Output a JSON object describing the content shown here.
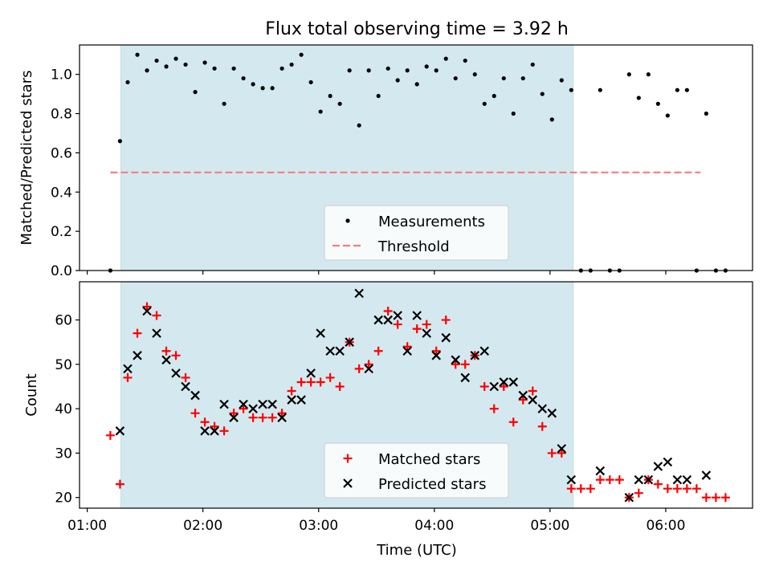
{
  "chart_data": [
    {
      "panel": "top",
      "type": "scatter",
      "title": "Flux total observing time = 3.92 h",
      "xlabel": "",
      "ylabel": "Matched/Predicted stars",
      "x_unit": "minutes after 00:00 UTC",
      "xlim": [
        56,
        405
      ],
      "ylim": [
        0.0,
        1.15
      ],
      "yticks": [
        0.0,
        0.2,
        0.4,
        0.6,
        0.8,
        1.0
      ],
      "ytick_labels": [
        "0.0",
        "0.2",
        "0.4",
        "0.6",
        "0.8",
        "1.0"
      ],
      "xticks": [
        60,
        120,
        180,
        240,
        300,
        360
      ],
      "shaded_span": [
        77.5,
        312
      ],
      "shaded_color": "#d4e9ef",
      "threshold": {
        "value": 0.5,
        "x_range": [
          72,
          378
        ],
        "color": "#f07f7f"
      },
      "series": [
        {
          "name": "Measurements",
          "color": "#000000",
          "points": [
            [
              72,
              0.0
            ],
            [
              77,
              0.66
            ],
            [
              81,
              0.96
            ],
            [
              86,
              1.1
            ],
            [
              91,
              1.02
            ],
            [
              96,
              1.07
            ],
            [
              101,
              1.04
            ],
            [
              106,
              1.08
            ],
            [
              111,
              1.05
            ],
            [
              116,
              0.91
            ],
            [
              121,
              1.06
            ],
            [
              126,
              1.03
            ],
            [
              131,
              0.85
            ],
            [
              136,
              1.03
            ],
            [
              141,
              0.98
            ],
            [
              146,
              0.95
            ],
            [
              151,
              0.93
            ],
            [
              156,
              0.93
            ],
            [
              161,
              1.03
            ],
            [
              166,
              1.05
            ],
            [
              171,
              1.1
            ],
            [
              176,
              0.96
            ],
            [
              181,
              0.81
            ],
            [
              186,
              0.89
            ],
            [
              191,
              0.85
            ],
            [
              196,
              1.02
            ],
            [
              201,
              0.74
            ],
            [
              206,
              1.02
            ],
            [
              211,
              0.89
            ],
            [
              216,
              1.03
            ],
            [
              221,
              0.97
            ],
            [
              226,
              1.02
            ],
            [
              231,
              0.95
            ],
            [
              236,
              1.04
            ],
            [
              241,
              1.02
            ],
            [
              246,
              1.08
            ],
            [
              251,
              0.98
            ],
            [
              256,
              1.07
            ],
            [
              261,
              1.0
            ],
            [
              266,
              0.85
            ],
            [
              271,
              0.89
            ],
            [
              276,
              0.98
            ],
            [
              281,
              0.8
            ],
            [
              286,
              0.98
            ],
            [
              291,
              1.05
            ],
            [
              296,
              0.9
            ],
            [
              301,
              0.77
            ],
            [
              306,
              0.97
            ],
            [
              311,
              0.92
            ],
            [
              316,
              0.0
            ],
            [
              321,
              0.0
            ],
            [
              326,
              0.92
            ],
            [
              331,
              0.0
            ],
            [
              336,
              0.0
            ],
            [
              341,
              1.0
            ],
            [
              346,
              0.88
            ],
            [
              351,
              1.0
            ],
            [
              356,
              0.85
            ],
            [
              361,
              0.79
            ],
            [
              366,
              0.92
            ],
            [
              371,
              0.92
            ],
            [
              376,
              0.0
            ],
            [
              381,
              0.8
            ],
            [
              386,
              0.0
            ],
            [
              391,
              0.0
            ]
          ]
        }
      ],
      "legend": {
        "location": "lower-center",
        "entries": [
          "Measurements",
          "Threshold"
        ]
      }
    },
    {
      "panel": "bottom",
      "type": "scatter",
      "title": "",
      "xlabel": "Time (UTC)",
      "ylabel": "Count",
      "x_unit": "minutes after 00:00 UTC",
      "xlim": [
        56,
        405
      ],
      "ylim": [
        17.6,
        68.6
      ],
      "yticks": [
        20,
        30,
        40,
        50,
        60
      ],
      "ytick_labels": [
        "20",
        "30",
        "40",
        "50",
        "60"
      ],
      "xticks": [
        60,
        120,
        180,
        240,
        300,
        360
      ],
      "xtick_labels": [
        "01:00",
        "02:00",
        "03:00",
        "04:00",
        "05:00",
        "06:00"
      ],
      "shaded_span": [
        77.5,
        312
      ],
      "shaded_color": "#d4e9ef",
      "x": [
        72,
        77,
        81,
        86,
        91,
        96,
        101,
        106,
        111,
        116,
        121,
        126,
        131,
        136,
        141,
        146,
        151,
        156,
        161,
        166,
        171,
        176,
        181,
        186,
        191,
        196,
        201,
        206,
        211,
        216,
        221,
        226,
        231,
        236,
        241,
        246,
        251,
        256,
        261,
        266,
        271,
        276,
        281,
        286,
        291,
        296,
        301,
        306,
        311,
        316,
        321,
        326,
        331,
        336,
        341,
        346,
        351,
        356,
        361,
        366,
        371,
        376,
        381,
        386,
        391
      ],
      "series": [
        {
          "name": "Matched stars",
          "marker": "plus",
          "color": "#ff0000",
          "values": [
            34,
            23,
            47,
            57,
            63,
            61,
            53,
            52,
            47,
            39,
            37,
            36,
            35,
            39,
            40,
            38,
            38,
            38,
            39,
            44,
            46,
            46,
            46,
            47,
            45,
            55,
            49,
            50,
            53,
            62,
            59,
            54,
            58,
            59,
            53,
            60,
            50,
            50,
            52,
            45,
            40,
            45,
            37,
            42,
            44,
            36,
            30,
            30,
            22,
            22,
            22,
            24,
            24,
            24,
            20,
            21,
            24,
            23,
            22,
            22,
            22,
            22,
            20,
            20,
            20
          ]
        },
        {
          "name": "Predicted stars",
          "marker": "x",
          "color": "#000000",
          "values": [
            null,
            35,
            49,
            52,
            62,
            57,
            51,
            48,
            45,
            43,
            35,
            35,
            41,
            38,
            41,
            40,
            41,
            41,
            38,
            42,
            42,
            48,
            57,
            53,
            53,
            55,
            66,
            49,
            60,
            60,
            61,
            53,
            61,
            57,
            52,
            56,
            51,
            47,
            52,
            53,
            45,
            46,
            46,
            43,
            42,
            40,
            39,
            31,
            24,
            null,
            null,
            26,
            null,
            null,
            20,
            24,
            24,
            27,
            28,
            24,
            24,
            null,
            25,
            null,
            null
          ]
        }
      ],
      "legend": {
        "location": "lower-center",
        "entries": [
          "Matched stars",
          "Predicted stars"
        ]
      }
    }
  ]
}
